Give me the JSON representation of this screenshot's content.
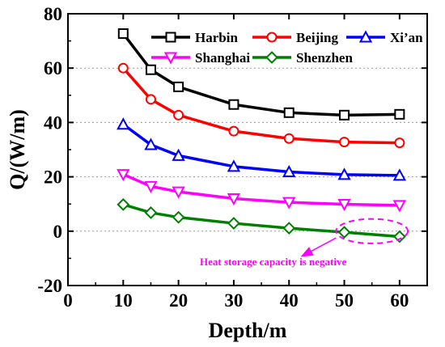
{
  "chart_data": {
    "type": "line",
    "xlabel": "Depth/m",
    "ylabel": "Q/(W/m)",
    "xlim": [
      0,
      65
    ],
    "ylim": [
      -20,
      80
    ],
    "xticks": [
      "0",
      "10",
      "20",
      "30",
      "40",
      "50",
      "60"
    ],
    "xtick_values": [
      0,
      10,
      20,
      30,
      40,
      50,
      60
    ],
    "yticks": [
      "-20",
      "0",
      "20",
      "40",
      "60",
      "80"
    ],
    "ytick_values": [
      -20,
      0,
      20,
      40,
      60,
      80
    ],
    "grid": "horizontal dotted",
    "legend_position": "top-right",
    "x": [
      10,
      15,
      20,
      30,
      40,
      50,
      60
    ],
    "series": [
      {
        "name": "Harbin",
        "color": "#000000",
        "marker": "square",
        "values": [
          72.7,
          59.4,
          53.1,
          46.6,
          43.6,
          42.7,
          43.0
        ]
      },
      {
        "name": "Beijing",
        "color": "#ff0000",
        "marker": "circle",
        "values": [
          60.0,
          48.5,
          42.7,
          36.8,
          34.1,
          32.8,
          32.5
        ]
      },
      {
        "name": "Xi’an",
        "color": "#0000ff",
        "marker": "triangle-up",
        "values": [
          39.3,
          31.8,
          27.8,
          23.8,
          21.8,
          20.8,
          20.5
        ]
      },
      {
        "name": "Shanghai",
        "color": "#ff00ff",
        "marker": "triangle-down",
        "values": [
          20.9,
          16.5,
          14.5,
          12.0,
          10.6,
          9.9,
          9.5
        ]
      },
      {
        "name": "Shenzhen",
        "color": "#008000",
        "marker": "diamond",
        "values": [
          9.8,
          6.8,
          5.1,
          2.9,
          1.1,
          -0.4,
          -2.0
        ]
      }
    ],
    "annotation": {
      "text": "Heat storage capacity is negative",
      "color": "#ff00ff",
      "ellipse_center": [
        55,
        0
      ],
      "ellipse_radius": [
        6.5,
        4.5
      ],
      "arrow_from": [
        48.5,
        -2.5
      ],
      "arrow_to": [
        42.5,
        -9.0
      ]
    }
  }
}
